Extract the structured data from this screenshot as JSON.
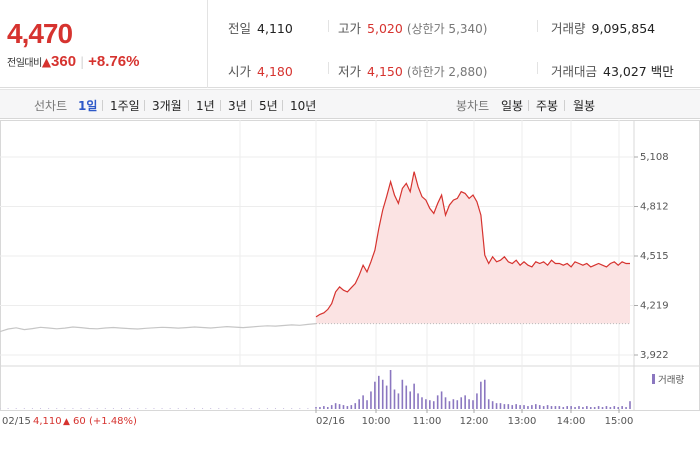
{
  "quote": {
    "price": "4,470",
    "change_label": "전일대비",
    "change_icon": "up-triangle",
    "change_amount": "360",
    "change_pct": "+8.76%",
    "prev_close_label": "전일",
    "prev_close": "4,110",
    "open_label": "시가",
    "open": "4,180",
    "high_label": "고가",
    "high": "5,020",
    "upper_limit": "(상한가 5,340)",
    "low_label": "저가",
    "low": "4,150",
    "lower_limit": "(하한가 2,880)",
    "volume_label": "거래량",
    "volume": "9,095,854",
    "amount_label": "거래대금",
    "amount": "43,027 백만"
  },
  "tabs": {
    "line_label": "선차트",
    "line_periods": [
      "1일",
      "1주일",
      "3개월",
      "1년",
      "3년",
      "5년",
      "10년"
    ],
    "selected_period": "1일",
    "candle_label": "봉차트",
    "candle_periods": [
      "일봉",
      "주봉",
      "월봉"
    ]
  },
  "colors": {
    "up": "#d6332f",
    "selected_tab": "#2d58c8",
    "volume": "#8b77c0"
  },
  "chart_data": {
    "type": "line",
    "y_ticks": [
      "5,108",
      "4,812",
      "4,515",
      "4,219",
      "3,922"
    ],
    "ylim": [
      3922,
      5108
    ],
    "baseline": 4110,
    "x_ticks": [
      "02/16",
      "10:00",
      "11:00",
      "12:00",
      "13:00",
      "14:00",
      "15:00"
    ],
    "prev_day_label": "02/15",
    "prev_day_close": "4,110",
    "prev_day_change": "60",
    "prev_day_change_pct": "(+1.48%)",
    "volume_legend": "거래량",
    "prev_day_series": [
      4062,
      4078,
      4085,
      4074,
      4080,
      4088,
      4084,
      4079,
      4083,
      4090,
      4086,
      4081,
      4079,
      4084,
      4087,
      4083,
      4080,
      4078,
      4082,
      4085,
      4088,
      4086,
      4083,
      4086,
      4090,
      4087,
      4084,
      4088,
      4092,
      4089,
      4086,
      4090,
      4094,
      4097,
      4095,
      4099,
      4102,
      4100,
      4105,
      4110
    ],
    "today_series": [
      4150,
      4165,
      4175,
      4195,
      4230,
      4300,
      4330,
      4310,
      4300,
      4325,
      4350,
      4400,
      4460,
      4420,
      4480,
      4550,
      4680,
      4790,
      4870,
      4960,
      4880,
      4830,
      4920,
      4950,
      4900,
      5020,
      4930,
      4870,
      4850,
      4800,
      4770,
      4830,
      4880,
      4760,
      4820,
      4850,
      4860,
      4900,
      4890,
      4860,
      4880,
      4840,
      4760,
      4520,
      4470,
      4510,
      4480,
      4490,
      4510,
      4480,
      4470,
      4490,
      4460,
      4480,
      4460,
      4450,
      4480,
      4470,
      4480,
      4460,
      4490,
      4470,
      4470,
      4460,
      4470,
      4450,
      4480,
      4470,
      4460,
      4470,
      4450,
      4460,
      4470,
      4460,
      4450,
      4470,
      4480,
      4460,
      4480,
      4470,
      4470
    ],
    "today_volume": [
      2,
      2,
      3,
      2,
      4,
      6,
      5,
      4,
      3,
      4,
      6,
      10,
      14,
      9,
      18,
      28,
      34,
      30,
      24,
      40,
      20,
      16,
      30,
      24,
      18,
      26,
      16,
      12,
      10,
      9,
      8,
      14,
      18,
      12,
      8,
      10,
      9,
      12,
      14,
      10,
      9,
      16,
      28,
      30,
      10,
      8,
      6,
      6,
      5,
      5,
      4,
      5,
      4,
      4,
      3,
      4,
      5,
      4,
      3,
      4,
      3,
      3,
      3,
      2,
      3,
      3,
      2,
      3,
      2,
      3,
      2,
      2,
      3,
      2,
      3,
      2,
      3,
      2,
      3,
      2,
      8
    ],
    "prev_day_volume": [
      1,
      1,
      1,
      1,
      1,
      1,
      1,
      1,
      1,
      1,
      1,
      1,
      1,
      1,
      1,
      1,
      1,
      1,
      1,
      1,
      1,
      1,
      1,
      1,
      1,
      1,
      1,
      1,
      1,
      1,
      1,
      1,
      1,
      1,
      1,
      1,
      1,
      1,
      1,
      1
    ]
  }
}
